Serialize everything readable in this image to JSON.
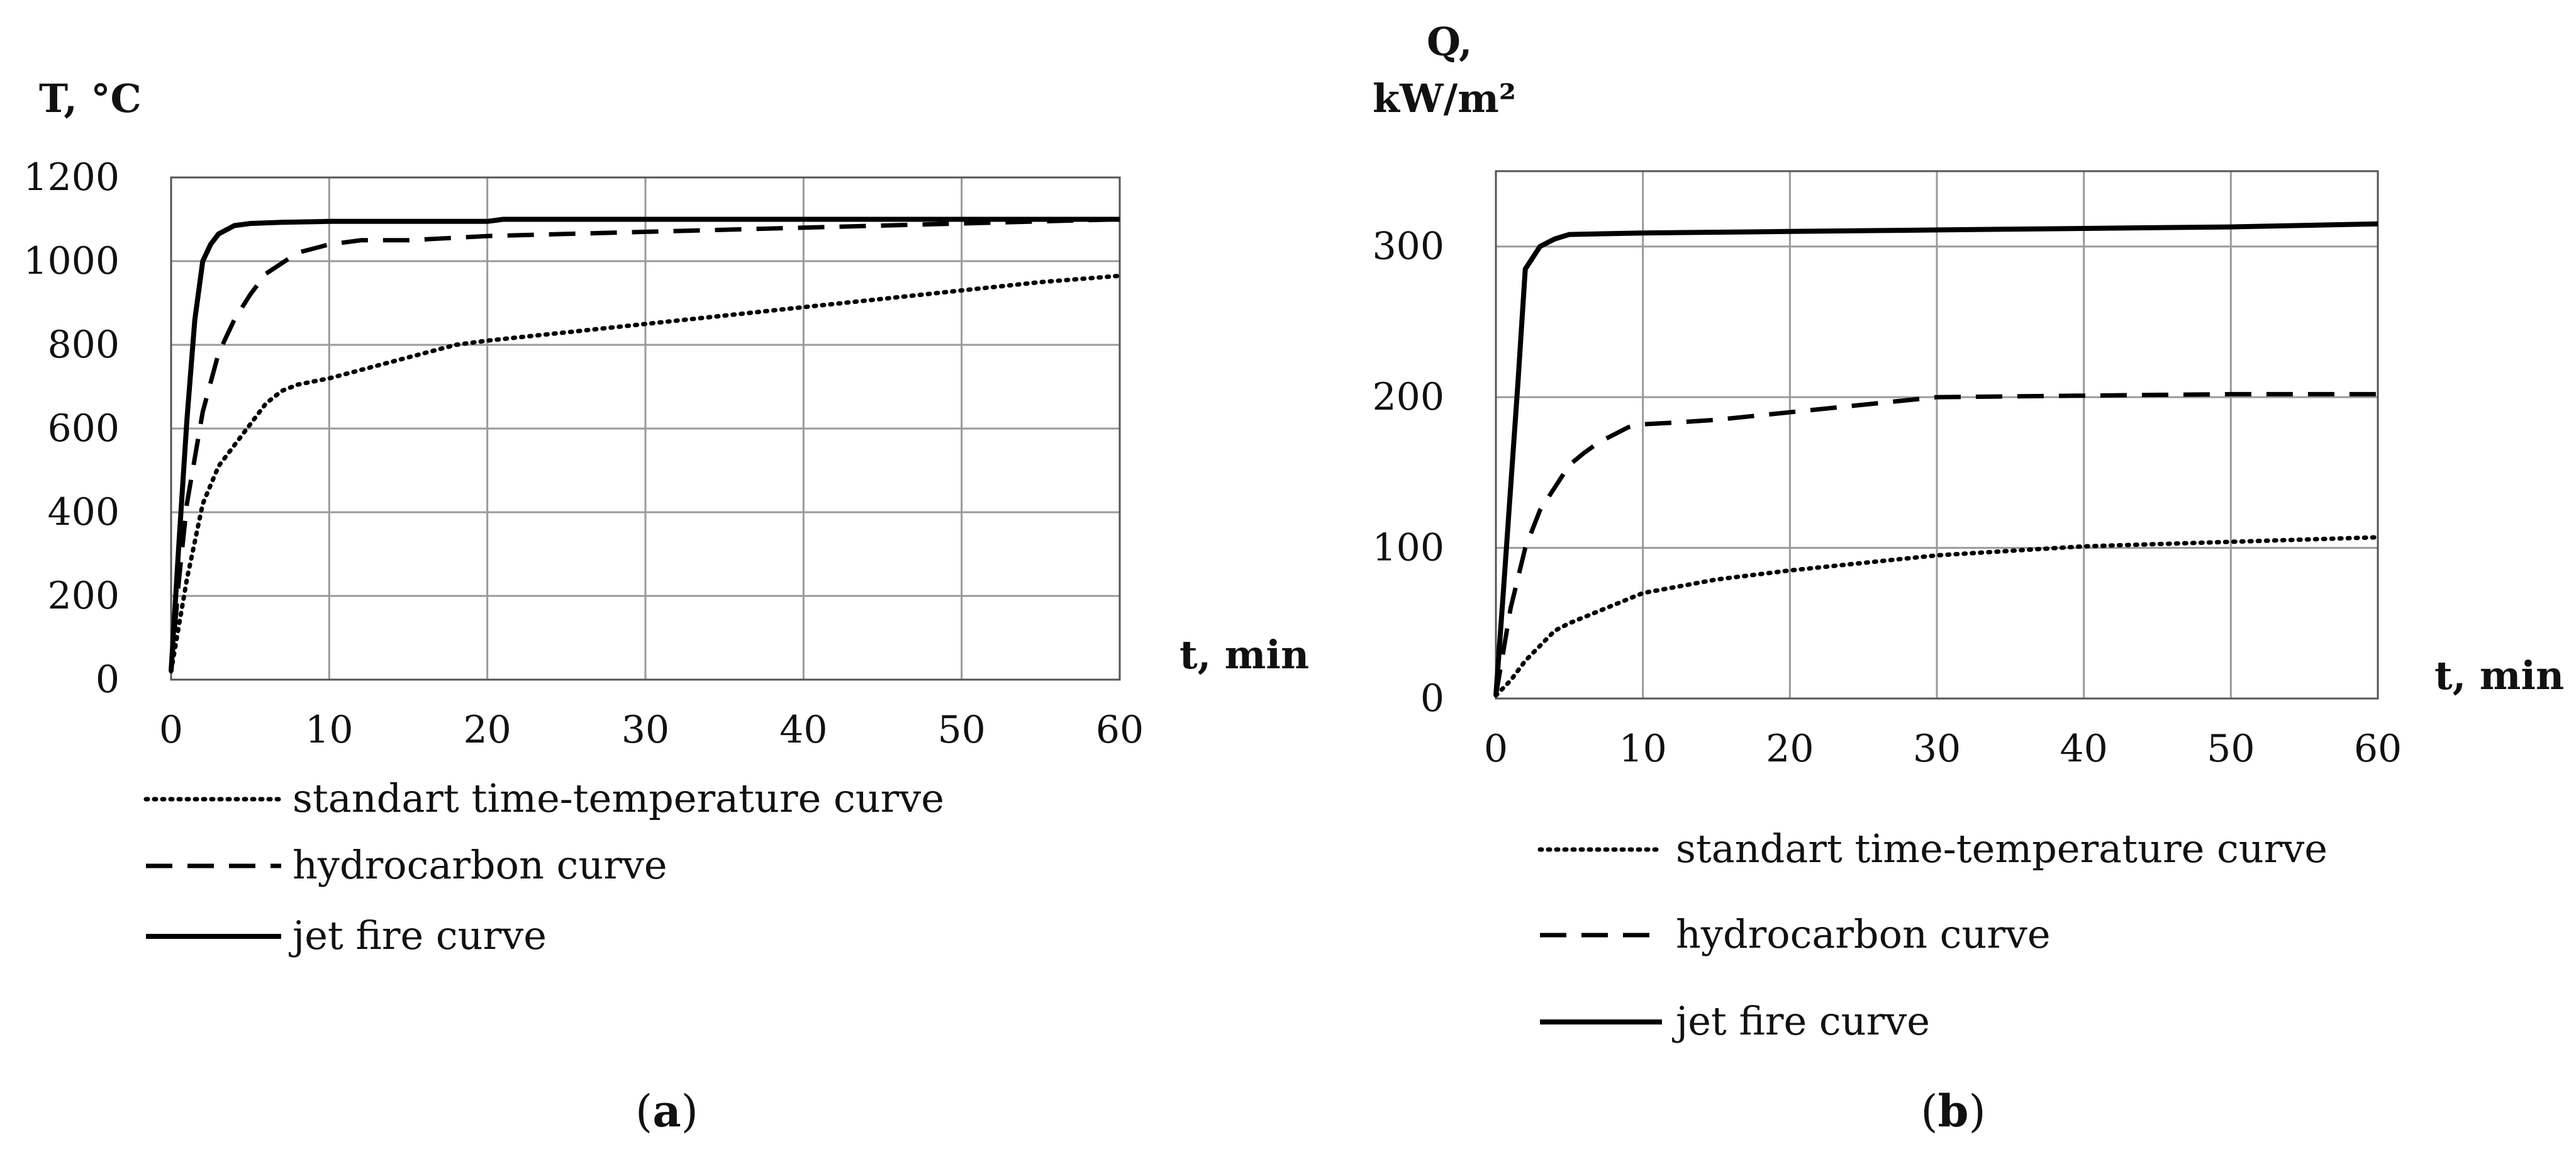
{
  "chart_data": [
    {
      "type": "line",
      "caption_letter": "a",
      "ylabel": "T, °C",
      "xlabel": "t, min",
      "xlim": [
        0,
        60
      ],
      "ylim": [
        0,
        1200
      ],
      "x_ticks": [
        0,
        10,
        20,
        30,
        40,
        50,
        60
      ],
      "y_ticks": [
        0,
        200,
        400,
        600,
        800,
        1000,
        1200
      ],
      "grid": true,
      "legend_position": "below",
      "series": [
        {
          "name": "standart time-temperature curve",
          "style": "dotted",
          "x": [
            0,
            1,
            2,
            3,
            4,
            5,
            6,
            7,
            8,
            10,
            12,
            15,
            18,
            20,
            25,
            30,
            35,
            40,
            45,
            50,
            55,
            60
          ],
          "y": [
            20,
            240,
            420,
            510,
            560,
            610,
            660,
            690,
            705,
            720,
            740,
            770,
            800,
            810,
            830,
            850,
            870,
            890,
            910,
            930,
            950,
            965
          ]
        },
        {
          "name": "hydrocarbon curve",
          "style": "dashed",
          "x": [
            0,
            0.5,
            1,
            2,
            3,
            4,
            5,
            6,
            8,
            10,
            12,
            15,
            20,
            30,
            40,
            50,
            60
          ],
          "y": [
            20,
            240,
            420,
            640,
            780,
            860,
            920,
            970,
            1020,
            1040,
            1050,
            1050,
            1060,
            1070,
            1080,
            1090,
            1100
          ]
        },
        {
          "name": "jet fire curve",
          "style": "solid",
          "x": [
            0,
            0.5,
            1,
            1.5,
            2,
            2.5,
            3,
            4,
            5,
            7,
            10,
            20,
            21,
            30,
            40,
            50,
            60
          ],
          "y": [
            20,
            330,
            620,
            860,
            1000,
            1040,
            1065,
            1085,
            1090,
            1093,
            1095,
            1095,
            1100,
            1100,
            1100,
            1100,
            1100
          ]
        }
      ]
    },
    {
      "type": "line",
      "caption_letter": "b",
      "ylabel_line1": "Q,",
      "ylabel_line2": "kW/m²",
      "xlabel": "t, min",
      "xlim": [
        0,
        60
      ],
      "ylim": [
        0,
        350
      ],
      "x_ticks": [
        0,
        10,
        20,
        30,
        40,
        50,
        60
      ],
      "y_ticks": [
        0,
        100,
        200,
        300
      ],
      "grid": true,
      "legend_position": "below",
      "series": [
        {
          "name": "standart time-temperature curve",
          "style": "dotted",
          "x": [
            0,
            1,
            2,
            3,
            4,
            5,
            7,
            10,
            15,
            20,
            30,
            40,
            50,
            60
          ],
          "y": [
            2,
            12,
            25,
            35,
            45,
            50,
            58,
            70,
            79,
            85,
            95,
            101,
            104,
            107
          ]
        },
        {
          "name": "hydrocarbon curve",
          "style": "dashed",
          "x": [
            0,
            1,
            2,
            3,
            4,
            5,
            6,
            7,
            8,
            9,
            10,
            12,
            15,
            20,
            25,
            30,
            40,
            50,
            60
          ],
          "y": [
            2,
            60,
            100,
            125,
            140,
            155,
            163,
            170,
            175,
            180,
            182,
            183,
            185,
            190,
            195,
            200,
            201,
            202,
            202
          ]
        },
        {
          "name": "jet fire curve",
          "style": "solid",
          "x": [
            0,
            0.5,
            1,
            1.5,
            2,
            3,
            4,
            5,
            10,
            20,
            30,
            40,
            50,
            60
          ],
          "y": [
            2,
            70,
            140,
            210,
            285,
            300,
            305,
            308,
            309,
            310,
            311,
            312,
            313,
            315
          ]
        }
      ]
    }
  ],
  "captions": [
    {
      "open": "(",
      "letter": "a",
      "close": ")"
    },
    {
      "open": "(",
      "letter": "b",
      "close": ")"
    }
  ]
}
